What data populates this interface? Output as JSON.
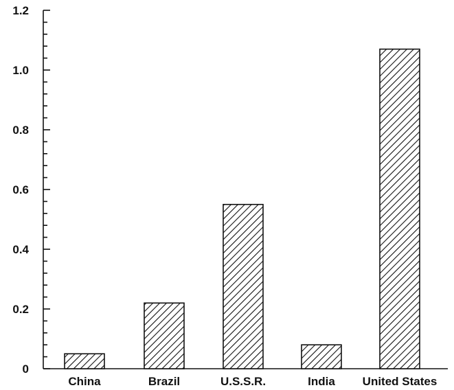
{
  "chart_data": {
    "type": "bar",
    "categories": [
      "China",
      "Brazil",
      "U.S.S.R.",
      "India",
      "United States"
    ],
    "values": [
      0.05,
      0.22,
      0.55,
      0.08,
      1.07
    ],
    "title": "",
    "xlabel": "",
    "ylabel": "",
    "ylim": [
      0,
      1.2
    ],
    "yticks": [
      0,
      0.2,
      0.4,
      0.6,
      0.8,
      1.0,
      1.2
    ],
    "ytick_labels": [
      "0",
      "0.2",
      "0.4",
      "0.6",
      "0.8",
      "1.0",
      "1.2"
    ],
    "minor_ticks_per_major": 4,
    "grid": false,
    "legend": "none",
    "bar_fill": "diagonal-hatch",
    "colors": {
      "bar_stroke": "#111111",
      "hatch": "#111111",
      "background": "#ffffff"
    }
  }
}
